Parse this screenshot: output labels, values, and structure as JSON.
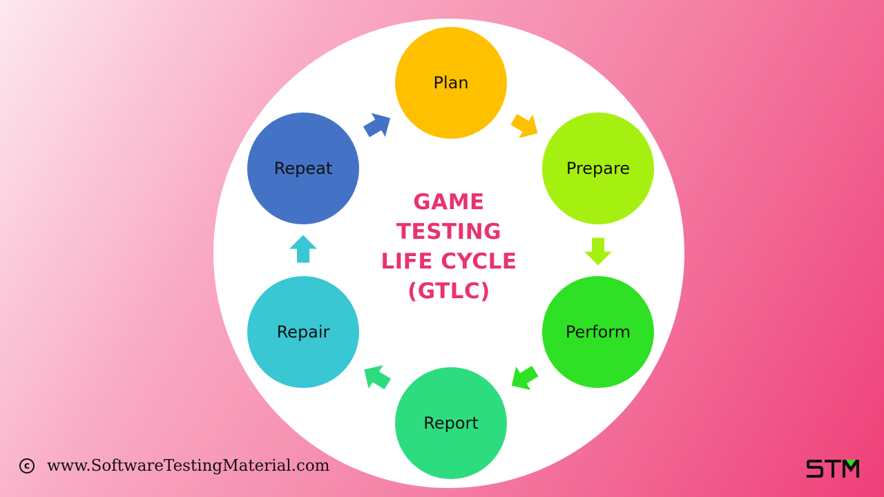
{
  "diagram": {
    "title_lines": [
      "GAME",
      "TESTING",
      "LIFE CYCLE",
      "(GTLC)"
    ],
    "title_color": "#e8336e",
    "nodes": [
      {
        "id": "plan",
        "label": "Plan",
        "color": "#ffc000"
      },
      {
        "id": "prepare",
        "label": "Prepare",
        "color": "#a6f011"
      },
      {
        "id": "perform",
        "label": "Perform",
        "color": "#2fe124"
      },
      {
        "id": "report",
        "label": "Report",
        "color": "#2edc80"
      },
      {
        "id": "repair",
        "label": "Repair",
        "color": "#38c7d3"
      },
      {
        "id": "repeat",
        "label": "Repeat",
        "color": "#4473c6"
      }
    ],
    "edges": [
      {
        "from": "plan",
        "to": "prepare",
        "color": "#ffc000"
      },
      {
        "from": "prepare",
        "to": "perform",
        "color": "#a6f011"
      },
      {
        "from": "perform",
        "to": "report",
        "color": "#2fe124"
      },
      {
        "from": "report",
        "to": "repair",
        "color": "#2edc80"
      },
      {
        "from": "repair",
        "to": "repeat",
        "color": "#38c7d3"
      },
      {
        "from": "repeat",
        "to": "plan",
        "color": "#4473c6"
      }
    ]
  },
  "footer": {
    "copyright_icon": "copyright-icon",
    "website": "www.SoftwareTestingMaterial.com"
  },
  "logo": {
    "text": "STM",
    "accent_color": "#2fe124"
  }
}
